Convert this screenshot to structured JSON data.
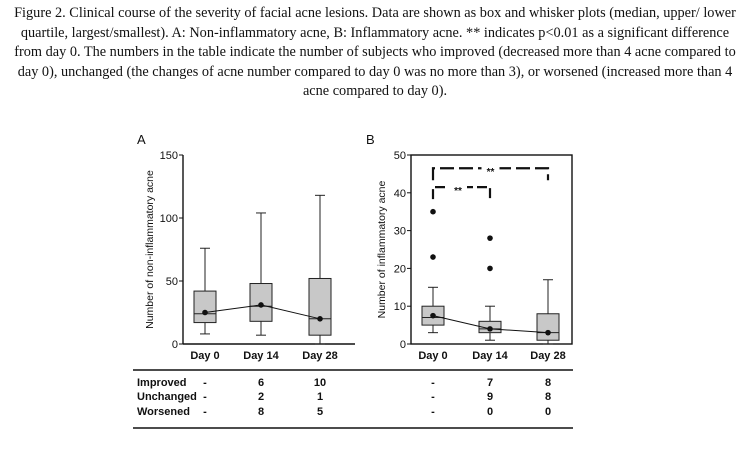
{
  "caption": "Figure 2. Clinical course of the severity of facial acne lesions. Data are shown as box and whisker plots (median, upper/ lower quartile, largest/smallest). A: Non-inflammatory acne, B: Inflammatory acne. ** indicates p<0.01 as a significant difference from day 0. The numbers in the table indicate the number of subjects who improved (decreased more than 4 acne compared to day 0), unchanged (the changes of acne number compared to day 0 was no more than 3), or worsened (increased more than 4 acne compared to day 0).",
  "chart_data": [
    {
      "type": "box",
      "panel_label": "A",
      "ylabel": "Number of non-inflammatory acne",
      "ylim": [
        0,
        150
      ],
      "yticks": [
        0,
        50,
        100,
        150
      ],
      "categories": [
        "Day 0",
        "Day 14",
        "Day 28"
      ],
      "boxes": [
        {
          "min": 8,
          "q1": 17,
          "median": 24,
          "q3": 42,
          "max": 76,
          "mean": 25
        },
        {
          "min": 7,
          "q1": 18,
          "median": 30,
          "q3": 48,
          "max": 104,
          "mean": 31
        },
        {
          "min": 0,
          "q1": 7,
          "median": 20,
          "q3": 52,
          "max": 118,
          "mean": 20
        }
      ],
      "mean_line": true,
      "outliers": [],
      "significance": []
    },
    {
      "type": "box",
      "panel_label": "B",
      "ylabel": "Number of inflammatory acne",
      "ylim": [
        0,
        50
      ],
      "yticks": [
        0,
        10,
        20,
        30,
        40,
        50
      ],
      "categories": [
        "Day 0",
        "Day 14",
        "Day 28"
      ],
      "boxes": [
        {
          "min": 3,
          "q1": 5,
          "median": 7,
          "q3": 10,
          "max": 15,
          "mean": 7.5
        },
        {
          "min": 1,
          "q1": 3,
          "median": 4,
          "q3": 6,
          "max": 10,
          "mean": 4
        },
        {
          "min": 0,
          "q1": 1,
          "median": 3,
          "q3": 8,
          "max": 17,
          "mean": 3
        }
      ],
      "mean_line": true,
      "outliers": [
        {
          "category": "Day 0",
          "value": 35
        },
        {
          "category": "Day 0",
          "value": 23
        },
        {
          "category": "Day 14",
          "value": 28
        },
        {
          "category": "Day 14",
          "value": 20
        }
      ],
      "significance": [
        {
          "from": "Day 0",
          "to": "Day 14",
          "label": "**"
        },
        {
          "from": "Day 0",
          "to": "Day 28",
          "label": "**"
        }
      ]
    }
  ],
  "tables": [
    {
      "row_labels": [
        "Improved",
        "Unchanged",
        "Worsened"
      ],
      "columns": [
        [
          "-",
          "-",
          "-"
        ],
        [
          "6",
          "2",
          "8"
        ],
        [
          "10",
          "1",
          "5"
        ]
      ]
    },
    {
      "row_labels": [],
      "columns": [
        [
          "-",
          "-",
          "-"
        ],
        [
          "7",
          "9",
          "0"
        ],
        [
          "8",
          "8",
          "0"
        ]
      ]
    }
  ]
}
